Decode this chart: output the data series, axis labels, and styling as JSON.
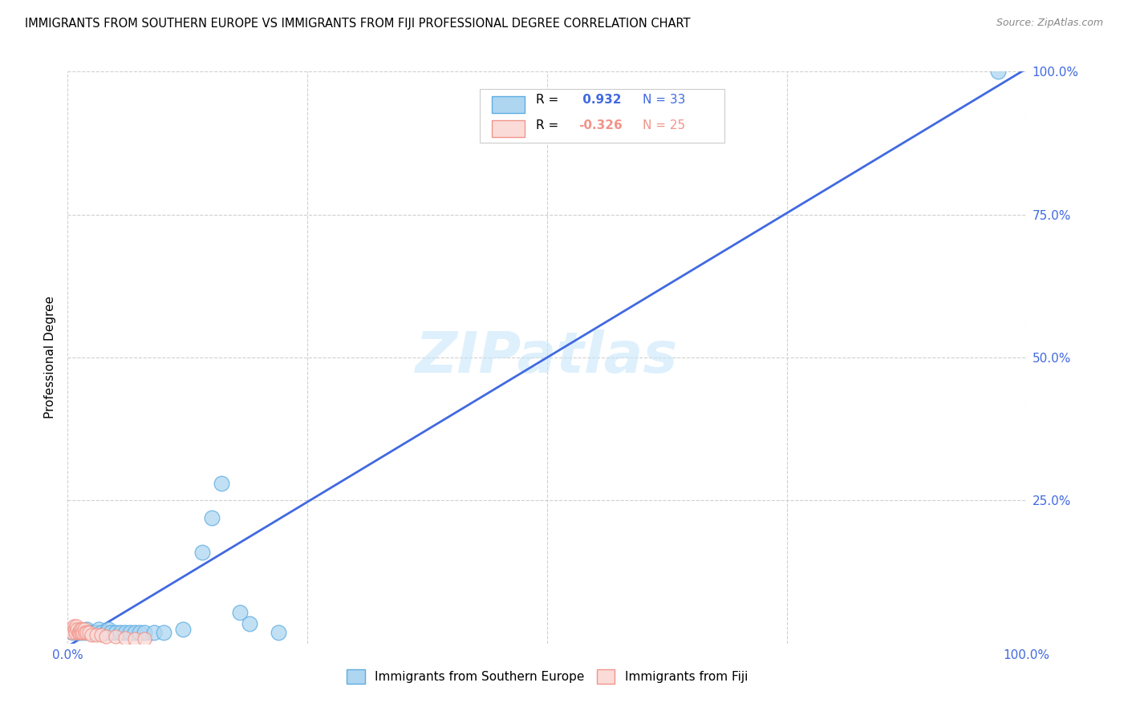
{
  "title": "IMMIGRANTS FROM SOUTHERN EUROPE VS IMMIGRANTS FROM FIJI PROFESSIONAL DEGREE CORRELATION CHART",
  "source": "Source: ZipAtlas.com",
  "ylabel": "Professional Degree",
  "xlim": [
    0,
    1.0
  ],
  "ylim": [
    0,
    1.0
  ],
  "xtick_positions": [
    0.0,
    0.25,
    0.5,
    0.75,
    1.0
  ],
  "ytick_positions": [
    0.25,
    0.5,
    0.75,
    1.0
  ],
  "background_color": "#ffffff",
  "grid_color": "#d0d0d0",
  "watermark": "ZIPatlas",
  "blue_face": "#AED6F1",
  "blue_edge": "#5DADE2",
  "pink_face": "#FADBD8",
  "pink_edge": "#F1948A",
  "blue_line_color": "#4169E1",
  "pink_line_color": "#F4A7B3",
  "tick_color": "#4169E1",
  "blue_scatter": [
    [
      0.005,
      0.02
    ],
    [
      0.008,
      0.025
    ],
    [
      0.01,
      0.02
    ],
    [
      0.012,
      0.02
    ],
    [
      0.015,
      0.02
    ],
    [
      0.018,
      0.02
    ],
    [
      0.02,
      0.025
    ],
    [
      0.022,
      0.02
    ],
    [
      0.025,
      0.02
    ],
    [
      0.028,
      0.02
    ],
    [
      0.03,
      0.02
    ],
    [
      0.032,
      0.025
    ],
    [
      0.035,
      0.02
    ],
    [
      0.04,
      0.02
    ],
    [
      0.042,
      0.025
    ],
    [
      0.045,
      0.02
    ],
    [
      0.05,
      0.02
    ],
    [
      0.055,
      0.02
    ],
    [
      0.06,
      0.02
    ],
    [
      0.065,
      0.02
    ],
    [
      0.07,
      0.02
    ],
    [
      0.075,
      0.02
    ],
    [
      0.08,
      0.02
    ],
    [
      0.09,
      0.02
    ],
    [
      0.1,
      0.02
    ],
    [
      0.12,
      0.025
    ],
    [
      0.14,
      0.16
    ],
    [
      0.15,
      0.22
    ],
    [
      0.16,
      0.28
    ],
    [
      0.18,
      0.055
    ],
    [
      0.19,
      0.035
    ],
    [
      0.22,
      0.02
    ],
    [
      0.97,
      1.0
    ]
  ],
  "pink_scatter": [
    [
      0.003,
      0.025
    ],
    [
      0.005,
      0.02
    ],
    [
      0.006,
      0.03
    ],
    [
      0.007,
      0.025
    ],
    [
      0.008,
      0.02
    ],
    [
      0.009,
      0.03
    ],
    [
      0.01,
      0.025
    ],
    [
      0.011,
      0.02
    ],
    [
      0.012,
      0.02
    ],
    [
      0.013,
      0.025
    ],
    [
      0.014,
      0.02
    ],
    [
      0.015,
      0.025
    ],
    [
      0.016,
      0.02
    ],
    [
      0.017,
      0.025
    ],
    [
      0.018,
      0.02
    ],
    [
      0.02,
      0.02
    ],
    [
      0.022,
      0.02
    ],
    [
      0.025,
      0.015
    ],
    [
      0.03,
      0.015
    ],
    [
      0.035,
      0.015
    ],
    [
      0.04,
      0.012
    ],
    [
      0.05,
      0.012
    ],
    [
      0.06,
      0.01
    ],
    [
      0.07,
      0.008
    ],
    [
      0.08,
      0.008
    ]
  ],
  "blue_trend_x": [
    0.0,
    1.0
  ],
  "blue_trend_y": [
    -0.005,
    1.005
  ],
  "pink_trend_x": [
    0.0,
    0.09
  ],
  "pink_trend_y": [
    0.028,
    0.005
  ],
  "legend_r1_prefix": "R = ",
  "legend_r1_val": " 0.932",
  "legend_r1_n": "N = 33",
  "legend_r2_prefix": "R = ",
  "legend_r2_val": "-0.326",
  "legend_r2_n": "N = 25",
  "bottom_legend_blue": "Immigrants from Southern Europe",
  "bottom_legend_pink": "Immigrants from Fiji"
}
